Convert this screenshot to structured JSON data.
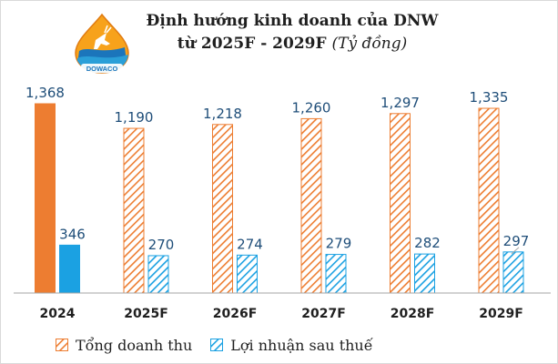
{
  "title": {
    "line1": "Định hướng kinh doanh của DNW",
    "line2": "từ 2025F - 2029F",
    "unit": "(Tỷ đồng)"
  },
  "logo": {
    "text": "DOWACO",
    "icon": "water-drop-deer-logo"
  },
  "colors": {
    "revenue": "#ed7d31",
    "profit": "#1ba1e2",
    "value_label": "#1f4e79",
    "axis": "#a6a6a6"
  },
  "chart_data": {
    "type": "bar",
    "categories": [
      "2024",
      "2025F",
      "2026F",
      "2027F",
      "2028F",
      "2029F"
    ],
    "series": [
      {
        "name": "Tổng doanh thu",
        "values": [
          1368,
          1190,
          1218,
          1260,
          1297,
          1335
        ],
        "labels": [
          "1,368",
          "1,190",
          "1,218",
          "1,260",
          "1,297",
          "1,335"
        ],
        "style": [
          "solid",
          "hatched",
          "hatched",
          "hatched",
          "hatched",
          "hatched"
        ]
      },
      {
        "name": "Lợi nhuận sau thuế",
        "values": [
          346,
          270,
          274,
          279,
          282,
          297
        ],
        "labels": [
          "346",
          "270",
          "274",
          "279",
          "282",
          "297"
        ],
        "style": [
          "solid",
          "hatched",
          "hatched",
          "hatched",
          "hatched",
          "hatched"
        ]
      }
    ],
    "ylim": [
      0,
      1400
    ],
    "grid": false,
    "legend_position": "bottom-left"
  }
}
